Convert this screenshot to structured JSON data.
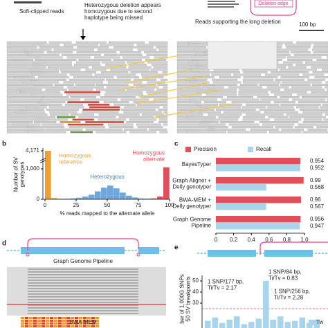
{
  "panel_a": {
    "soft_clipped": "Soft-clipped reads",
    "het_note": "Heterozygous deletion appears\nhomozygous due to second\nhaplotype being missed",
    "deletion_edge": "Deletion edge",
    "long_deletion": "Reads supporting the long deletion",
    "scale": "100 bp"
  },
  "panel_d": {
    "label": "d",
    "top_label": "Graph Genome Pipeline",
    "bottom_label": "BWA-MEM"
  },
  "chart_data": [
    {
      "type": "histogram",
      "panel": "b",
      "xlabel": "% reads mapped to the alternate allele",
      "ylabel": "Number of SV\ngenotypes",
      "bins": [
        0,
        5,
        10,
        15,
        20,
        25,
        30,
        35,
        40,
        45,
        50,
        55,
        60,
        65,
        70,
        75,
        80,
        85,
        90,
        95,
        100
      ],
      "counts": [
        4171,
        40,
        20,
        20,
        30,
        50,
        90,
        150,
        260,
        380,
        450,
        360,
        220,
        120,
        60,
        30,
        25,
        30,
        90,
        1050
      ],
      "colors": [
        "#f0a030",
        "#f0a030",
        "#f0a030",
        "#6fa8dc",
        "#6fa8dc",
        "#6fa8dc",
        "#6fa8dc",
        "#6fa8dc",
        "#6fa8dc",
        "#6fa8dc",
        "#6fa8dc",
        "#6fa8dc",
        "#6fa8dc",
        "#6fa8dc",
        "#6fa8dc",
        "#6fa8dc",
        "#6fa8dc",
        "#e0505a",
        "#e0505a",
        "#e0505a"
      ],
      "xlim": [
        0,
        100
      ],
      "xticks": [
        0,
        25,
        50,
        75,
        100
      ],
      "yticks": [
        0,
        {
          "value": 1000,
          "label": "1,000"
        },
        {
          "value": 4171,
          "label": "4,171"
        }
      ],
      "annotations": [
        {
          "text": "Homozygous\nreference",
          "color": "#f0a030"
        },
        {
          "text": "Heterozygous",
          "color": "#3d85c6"
        },
        {
          "text": "Homozygous\nalternate",
          "color": "#e0505a"
        }
      ]
    },
    {
      "type": "hbar",
      "panel": "c",
      "categories": [
        "BayesTyper",
        "Graph Aligner +\nDelly genotyper",
        "BWA-MEM +\nDelly genotyper",
        "Graph Genome\nPipeline"
      ],
      "series": [
        {
          "name": "Precision",
          "color": "#e0505a",
          "values": [
            0.954,
            0.99,
            0.96,
            0.956
          ]
        },
        {
          "name": "Recall",
          "color": "#a8d4ec",
          "values": [
            0.952,
            0.568,
            0.567,
            0.947
          ]
        }
      ],
      "xlim": [
        0,
        1
      ],
      "xticks": [
        0,
        0.2,
        0.4,
        0.6,
        0.8,
        {
          "value": 1,
          "label": "1.0"
        }
      ]
    },
    {
      "type": "bar",
      "panel": "e",
      "ylabel": "ber of 1,000G SNPs\n50 SV breakpoints",
      "series": [
        {
          "name": "Tw",
          "color": "#a8d4ec",
          "values": [
            14,
            17,
            12,
            15,
            18,
            11,
            13,
            16,
            50,
            15,
            18,
            13,
            14,
            17,
            12,
            15
          ]
        }
      ],
      "ylim": [
        0,
        55
      ],
      "yticks": [
        30,
        40,
        50
      ],
      "annotations": [
        "1 SNP/177 bp,\nTi/Tv = 2.17",
        "1 SNP/84 bp,\nTi/Tv = 0.83",
        "1 SNP/256 bp,\nTi/Tv = 2.28"
      ]
    }
  ]
}
